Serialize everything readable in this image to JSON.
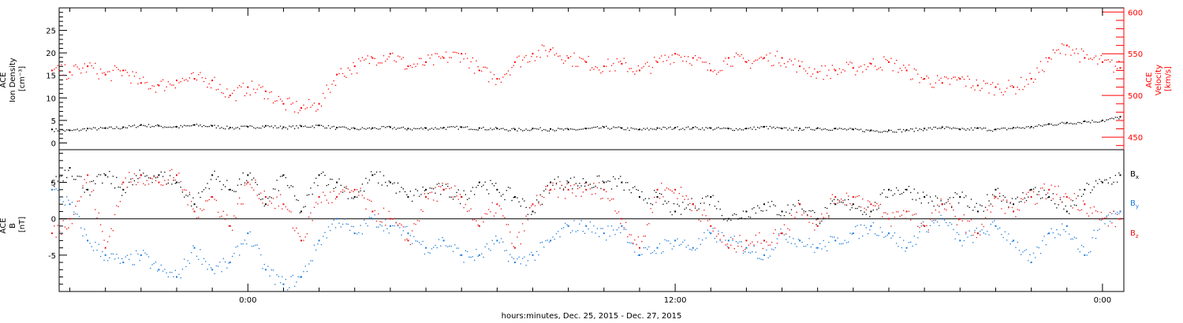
{
  "colors": {
    "density": "#000000",
    "velocity": "#ff0000",
    "bx": "#000000",
    "by": "#1a78d8",
    "bz": "#e81010",
    "axis": "#000000"
  },
  "chart_data": [
    {
      "type": "scatter",
      "panel": "top",
      "left_axis": {
        "label_lines": [
          "ACE",
          "Ion Density",
          "[cm⁻³]"
        ],
        "ticks": [
          0,
          5,
          10,
          15,
          20,
          25
        ],
        "tick_labels": [
          "0",
          "5",
          "10",
          "15",
          "20",
          "25"
        ],
        "ylim": [
          -1.5,
          30
        ]
      },
      "right_axis": {
        "label_lines": [
          "ACE",
          "Velocity",
          "[km/s]"
        ],
        "ticks": [
          450,
          500,
          550,
          600
        ],
        "tick_labels": [
          "450",
          "500",
          "550",
          "600"
        ],
        "ylim": [
          435,
          605
        ]
      },
      "series": [
        {
          "key": "density",
          "axis": "left",
          "x": [
            -5.5,
            -5,
            -4.5,
            -4,
            -3.5,
            -3,
            -2.5,
            -2,
            -1.5,
            -1,
            -0.5,
            0,
            0.5,
            1,
            1.5,
            2,
            2.5,
            3,
            3.5,
            4,
            4.5,
            5,
            5.5,
            6,
            6.5,
            7,
            7.5,
            8,
            8.5,
            9,
            9.5,
            10,
            10.5,
            11,
            11.5,
            12,
            12.5,
            13,
            13.5,
            14,
            14.5,
            15,
            15.5,
            16,
            16.5,
            17,
            17.5,
            18,
            18.5,
            19,
            19.5,
            20,
            20.5,
            21,
            21.5,
            22,
            22.5,
            23,
            23.5,
            24,
            24.5
          ],
          "values": [
            3.0,
            2.8,
            3.2,
            3.3,
            3.5,
            4.0,
            3.8,
            3.6,
            4.0,
            3.8,
            3.4,
            3.6,
            3.8,
            3.5,
            3.7,
            3.9,
            3.4,
            3.2,
            3.3,
            3.5,
            3.2,
            3.3,
            3.4,
            3.5,
            3.3,
            3.2,
            3.0,
            3.2,
            3.1,
            3.0,
            3.2,
            3.5,
            3.3,
            3.0,
            3.3,
            3.4,
            3.4,
            3.3,
            3.2,
            3.2,
            3.6,
            3.2,
            3.2,
            3.3,
            3.2,
            3.0,
            2.8,
            2.8,
            2.9,
            3.2,
            3.5,
            3.0,
            3.3,
            3.0,
            3.4,
            3.6,
            4.2,
            4.5,
            4.8,
            5.0,
            5.8
          ]
        },
        {
          "key": "velocity",
          "axis": "right",
          "x": [
            -5.5,
            -5,
            -4.5,
            -4,
            -3.5,
            -3,
            -2.5,
            -2,
            -1.5,
            -1,
            -0.5,
            0,
            0.5,
            1,
            1.5,
            2,
            2.5,
            3,
            3.5,
            4,
            4.5,
            5,
            5.5,
            6,
            6.5,
            7,
            7.5,
            8,
            8.5,
            9,
            9.5,
            10,
            10.5,
            11,
            11.5,
            12,
            12.5,
            13,
            13.5,
            14,
            14.5,
            15,
            15.5,
            16,
            16.5,
            17,
            17.5,
            18,
            18.5,
            19,
            19.5,
            20,
            20.5,
            21,
            21.5,
            22,
            22.5,
            23,
            23.5,
            24,
            24.5
          ],
          "values": [
            530,
            528,
            535,
            525,
            530,
            515,
            512,
            518,
            520,
            518,
            500,
            510,
            505,
            490,
            485,
            490,
            525,
            535,
            545,
            550,
            535,
            540,
            545,
            550,
            530,
            520,
            540,
            550,
            555,
            545,
            540,
            535,
            538,
            530,
            540,
            550,
            545,
            530,
            545,
            540,
            545,
            545,
            535,
            528,
            530,
            533,
            538,
            540,
            530,
            520,
            515,
            520,
            512,
            510,
            510,
            520,
            545,
            560,
            545,
            540,
            533
          ]
        }
      ]
    },
    {
      "type": "scatter",
      "panel": "bottom",
      "left_axis": {
        "label_lines": [
          "ACE",
          "B",
          "[nT]"
        ],
        "ticks": [
          -5,
          0,
          5
        ],
        "tick_labels": [
          "-5",
          "0",
          "5"
        ],
        "ylim": [
          -10,
          9.5
        ]
      },
      "legend": [
        "B",
        "B",
        "B"
      ],
      "legend_subscripts": [
        "x",
        "y",
        "z"
      ],
      "legend_position": "right",
      "x_axis": {
        "label": "hours:minutes, Dec. 25, 2015 - Dec. 27, 2015",
        "tick_labels": [
          "0:00",
          "12:00",
          "0:00"
        ],
        "major_ticks": [
          0,
          12,
          24
        ],
        "xlim": [
          -5.3,
          24.6
        ]
      },
      "series": [
        {
          "key": "bx",
          "x": [
            -5.5,
            -5,
            -4.5,
            -4,
            -3.5,
            -3,
            -2.5,
            -2,
            -1.5,
            -1,
            -0.5,
            0,
            0.5,
            1,
            1.5,
            2,
            2.5,
            3,
            3.5,
            4,
            4.5,
            5,
            5.5,
            6,
            6.5,
            7,
            7.5,
            8,
            8.5,
            9,
            9.5,
            10,
            10.5,
            11,
            11.5,
            12,
            12.5,
            13,
            13.5,
            14,
            14.5,
            15,
            15.5,
            16,
            16.5,
            17,
            17.5,
            18,
            18.5,
            19,
            19.5,
            20,
            20.5,
            21,
            21.5,
            22,
            22.5,
            23,
            23.5,
            24,
            24.5
          ],
          "values": [
            5,
            7,
            4,
            6,
            4,
            6,
            6,
            5,
            2,
            6,
            4,
            6,
            2,
            6,
            1,
            6,
            5,
            3,
            6,
            5,
            3,
            4,
            4,
            3,
            5,
            4,
            3,
            1,
            5,
            5,
            5,
            5,
            5,
            3,
            3,
            1,
            2,
            3,
            0,
            1,
            2,
            1,
            2,
            0,
            2,
            2,
            1,
            4,
            4,
            3,
            2,
            3,
            1,
            4,
            2,
            4,
            3,
            1,
            4,
            5,
            6
          ]
        },
        {
          "key": "by",
          "x": [
            -5.5,
            -5,
            -4.5,
            -4,
            -3.5,
            -3,
            -2.5,
            -2,
            -1.5,
            -1,
            -0.5,
            0,
            0.5,
            1,
            1.5,
            2,
            2.5,
            3,
            3.5,
            4,
            4.5,
            5,
            5.5,
            6,
            6.5,
            7,
            7.5,
            8,
            8.5,
            9,
            9.5,
            10,
            10.5,
            11,
            11.5,
            12,
            12.5,
            13,
            13.5,
            14,
            14.5,
            15,
            15.5,
            16,
            16.5,
            17,
            17.5,
            18,
            18.5,
            19,
            19.5,
            20,
            20.5,
            21,
            21.5,
            22,
            22.5,
            23,
            23.5,
            24,
            24.5
          ],
          "values": [
            4,
            2,
            -3,
            -5,
            -6,
            -5,
            -7,
            -8,
            -4,
            -7,
            -6,
            -2,
            -7,
            -9,
            -8,
            -3,
            0,
            -2,
            0,
            -1,
            -2,
            -4,
            -3,
            -5,
            -5,
            -3,
            -6,
            -5,
            -3,
            -1,
            -1,
            -2,
            -1,
            -5,
            -4,
            -3,
            -4,
            -2,
            -3,
            -4,
            -5,
            -2,
            -3,
            -4,
            -3,
            -2,
            -1,
            -2,
            -4,
            -1,
            0,
            -3,
            -2,
            -1,
            -3,
            -6,
            -2,
            -1,
            -5,
            0,
            1
          ]
        },
        {
          "key": "bz",
          "x": [
            -5.5,
            -5,
            -4.5,
            -4,
            -3.5,
            -3,
            -2.5,
            -2,
            -1.5,
            -1,
            -0.5,
            0,
            0.5,
            1,
            1.5,
            2,
            2.5,
            3,
            3.5,
            4,
            4.5,
            5,
            5.5,
            6,
            6.5,
            7,
            7.5,
            8,
            8.5,
            9,
            9.5,
            10,
            10.5,
            11,
            11.5,
            12,
            12.5,
            13,
            13.5,
            14,
            14.5,
            15,
            15.5,
            16,
            16.5,
            17,
            17.5,
            18,
            18.5,
            19,
            19.5,
            20,
            20.5,
            21,
            21.5,
            22,
            22.5,
            23,
            23.5,
            24,
            24.5
          ],
          "values": [
            -2,
            0,
            6,
            -4,
            5,
            6,
            5,
            6,
            1,
            3,
            -1,
            5,
            3,
            2,
            -3,
            3,
            3,
            4,
            1,
            0,
            -3,
            3,
            4,
            3,
            -1,
            2,
            -4,
            2,
            4,
            4,
            4,
            4,
            0,
            -4,
            4,
            4,
            2,
            -1,
            -4,
            -3,
            -3,
            -2,
            2,
            -1,
            3,
            3,
            2,
            0,
            1,
            -1,
            2,
            0,
            -2,
            3,
            1,
            3,
            4,
            3,
            2,
            0,
            0
          ]
        }
      ]
    }
  ]
}
